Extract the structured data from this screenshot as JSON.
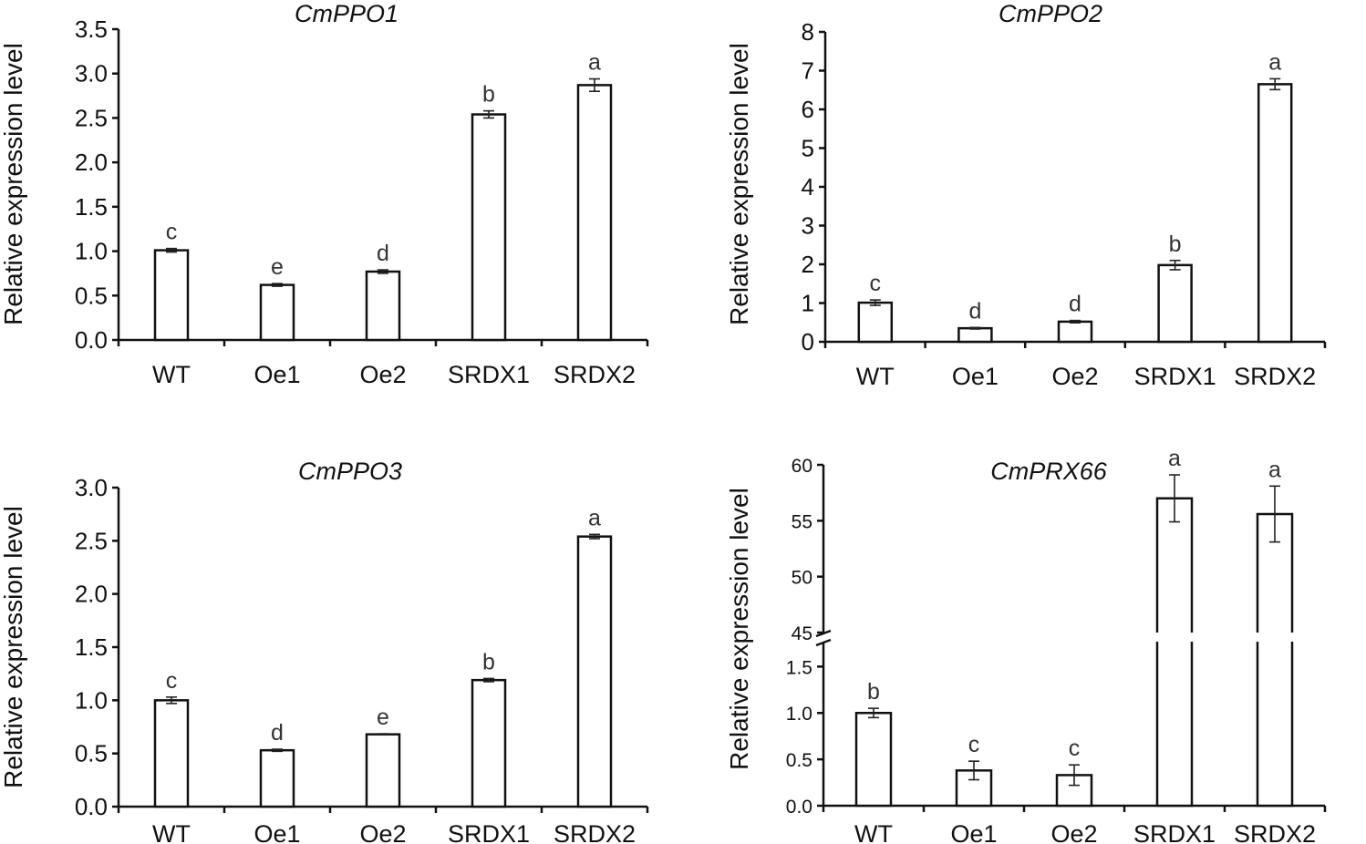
{
  "chart_data": [
    {
      "type": "bar",
      "title": "CmPPO1",
      "ylabel": "Relative expression level",
      "categories": [
        "WT",
        "Oe1",
        "Oe2",
        "SRDX1",
        "SRDX2"
      ],
      "values": [
        1.01,
        0.62,
        0.77,
        2.54,
        2.87
      ],
      "errors": [
        0.02,
        0.015,
        0.02,
        0.04,
        0.07
      ],
      "significance": [
        "c",
        "e",
        "d",
        "b",
        "a"
      ],
      "ylim": [
        0,
        3.5
      ],
      "yticks": [
        "0.0",
        "0.5",
        "1.0",
        "1.5",
        "2.0",
        "2.5",
        "3.0",
        "3.5"
      ]
    },
    {
      "type": "bar",
      "title": "CmPPO2",
      "ylabel": "Relative expression level",
      "categories": [
        "WT",
        "Oe1",
        "Oe2",
        "SRDX1",
        "SRDX2"
      ],
      "values": [
        1.01,
        0.35,
        0.52,
        1.98,
        6.65
      ],
      "errors": [
        0.07,
        0.02,
        0.03,
        0.12,
        0.14
      ],
      "significance": [
        "c",
        "d",
        "d",
        "b",
        "a"
      ],
      "ylim": [
        0,
        8
      ],
      "yticks": [
        "0",
        "1",
        "2",
        "3",
        "4",
        "5",
        "6",
        "7",
        "8"
      ]
    },
    {
      "type": "bar",
      "title": "CmPPO3",
      "ylabel": "Relative expression level",
      "categories": [
        "WT",
        "Oe1",
        "Oe2",
        "SRDX1",
        "SRDX2"
      ],
      "values": [
        1.0,
        0.53,
        0.68,
        1.19,
        2.54
      ],
      "errors": [
        0.03,
        0.01,
        0.005,
        0.015,
        0.02
      ],
      "significance": [
        "c",
        "d",
        "e",
        "b",
        "a"
      ],
      "ylim": [
        0,
        3.0
      ],
      "yticks": [
        "0.0",
        "0.5",
        "1.0",
        "1.5",
        "2.0",
        "2.5",
        "3.0"
      ]
    },
    {
      "type": "bar",
      "title": "CmPRX66",
      "ylabel": "Relative expression level",
      "categories": [
        "WT",
        "Oe1",
        "Oe2",
        "SRDX1",
        "SRDX2"
      ],
      "values": [
        1.0,
        0.38,
        0.33,
        57.0,
        55.6
      ],
      "errors": [
        0.05,
        0.1,
        0.11,
        2.1,
        2.5
      ],
      "significance": [
        "b",
        "c",
        "c",
        "a",
        "a"
      ],
      "axis_break": true,
      "lower_range": [
        0,
        1.7
      ],
      "upper_range": [
        45,
        60
      ],
      "lower_ticks": [
        "0.0",
        "0.5",
        "1.0",
        "1.5"
      ],
      "upper_ticks": [
        "45",
        "50",
        "55",
        "60"
      ]
    }
  ]
}
